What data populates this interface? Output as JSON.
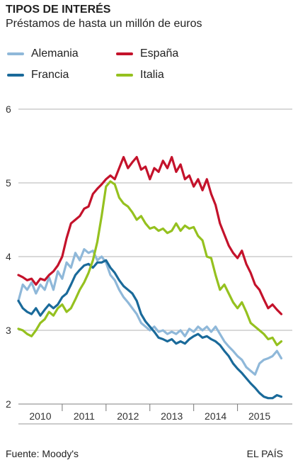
{
  "header": {
    "title": "TIPOS DE INTERÉS",
    "subtitle": "Préstamos de hasta un millón de euros"
  },
  "footer": {
    "source": "Fuente: Moody's",
    "brand": "EL PAÍS"
  },
  "chart_data": {
    "type": "line",
    "title": "TIPOS DE INTERÉS",
    "subtitle": "Préstamos de hasta un millón de euros",
    "xlabel": "",
    "ylabel": "",
    "ylim": [
      2,
      6
    ],
    "xlim": [
      2009.5,
      2015.75
    ],
    "yticks": [
      2,
      3,
      4,
      5,
      6
    ],
    "xtick_labels": [
      "2010",
      "2011",
      "2012",
      "2013",
      "2014",
      "2015"
    ],
    "x_label_positions": [
      2010,
      2011,
      2012,
      2013,
      2014,
      2015
    ],
    "x_separators": [
      2010.5,
      2011.5,
      2012.5,
      2013.5,
      2014.5
    ],
    "grid": "horizontal",
    "legend_placement": "top",
    "series": [
      {
        "name": "Alemania",
        "color": "#8fb8d9",
        "points": [
          [
            2009.5,
            3.4
          ],
          [
            2009.6,
            3.62
          ],
          [
            2009.7,
            3.55
          ],
          [
            2009.8,
            3.65
          ],
          [
            2009.9,
            3.5
          ],
          [
            2010.0,
            3.62
          ],
          [
            2010.1,
            3.55
          ],
          [
            2010.2,
            3.72
          ],
          [
            2010.3,
            3.55
          ],
          [
            2010.4,
            3.8
          ],
          [
            2010.5,
            3.7
          ],
          [
            2010.6,
            3.92
          ],
          [
            2010.7,
            3.85
          ],
          [
            2010.8,
            4.05
          ],
          [
            2010.9,
            3.95
          ],
          [
            2011.0,
            4.1
          ],
          [
            2011.1,
            4.05
          ],
          [
            2011.2,
            4.08
          ],
          [
            2011.3,
            3.95
          ],
          [
            2011.4,
            4.0
          ],
          [
            2011.5,
            3.92
          ],
          [
            2011.6,
            3.75
          ],
          [
            2011.7,
            3.68
          ],
          [
            2011.8,
            3.55
          ],
          [
            2011.9,
            3.45
          ],
          [
            2012.0,
            3.38
          ],
          [
            2012.1,
            3.3
          ],
          [
            2012.2,
            3.22
          ],
          [
            2012.3,
            3.1
          ],
          [
            2012.4,
            3.05
          ],
          [
            2012.5,
            3.0
          ],
          [
            2012.6,
            3.05
          ],
          [
            2012.7,
            2.98
          ],
          [
            2012.8,
            3.0
          ],
          [
            2012.9,
            2.95
          ],
          [
            2013.0,
            2.98
          ],
          [
            2013.1,
            2.95
          ],
          [
            2013.2,
            3.0
          ],
          [
            2013.3,
            2.92
          ],
          [
            2013.4,
            3.02
          ],
          [
            2013.5,
            2.98
          ],
          [
            2013.6,
            3.05
          ],
          [
            2013.7,
            3.0
          ],
          [
            2013.8,
            3.05
          ],
          [
            2013.9,
            2.98
          ],
          [
            2014.0,
            3.05
          ],
          [
            2014.1,
            2.95
          ],
          [
            2014.2,
            2.85
          ],
          [
            2014.3,
            2.78
          ],
          [
            2014.4,
            2.72
          ],
          [
            2014.5,
            2.65
          ],
          [
            2014.6,
            2.6
          ],
          [
            2014.7,
            2.5
          ],
          [
            2014.8,
            2.45
          ],
          [
            2014.9,
            2.4
          ],
          [
            2015.0,
            2.55
          ],
          [
            2015.1,
            2.6
          ],
          [
            2015.2,
            2.62
          ],
          [
            2015.3,
            2.65
          ],
          [
            2015.4,
            2.72
          ],
          [
            2015.5,
            2.62
          ]
        ]
      },
      {
        "name": "Francia",
        "color": "#1a6a9a",
        "points": [
          [
            2009.5,
            3.4
          ],
          [
            2009.6,
            3.3
          ],
          [
            2009.7,
            3.25
          ],
          [
            2009.8,
            3.22
          ],
          [
            2009.9,
            3.3
          ],
          [
            2010.0,
            3.2
          ],
          [
            2010.1,
            3.28
          ],
          [
            2010.2,
            3.35
          ],
          [
            2010.3,
            3.3
          ],
          [
            2010.4,
            3.35
          ],
          [
            2010.5,
            3.45
          ],
          [
            2010.6,
            3.5
          ],
          [
            2010.7,
            3.62
          ],
          [
            2010.8,
            3.75
          ],
          [
            2010.9,
            3.82
          ],
          [
            2011.0,
            3.88
          ],
          [
            2011.1,
            3.9
          ],
          [
            2011.2,
            3.85
          ],
          [
            2011.3,
            3.92
          ],
          [
            2011.4,
            3.92
          ],
          [
            2011.5,
            3.95
          ],
          [
            2011.6,
            3.85
          ],
          [
            2011.7,
            3.78
          ],
          [
            2011.8,
            3.68
          ],
          [
            2011.9,
            3.6
          ],
          [
            2012.0,
            3.55
          ],
          [
            2012.1,
            3.5
          ],
          [
            2012.2,
            3.4
          ],
          [
            2012.3,
            3.22
          ],
          [
            2012.4,
            3.12
          ],
          [
            2012.5,
            3.05
          ],
          [
            2012.6,
            2.98
          ],
          [
            2012.7,
            2.9
          ],
          [
            2012.8,
            2.88
          ],
          [
            2012.9,
            2.85
          ],
          [
            2013.0,
            2.88
          ],
          [
            2013.1,
            2.82
          ],
          [
            2013.2,
            2.85
          ],
          [
            2013.3,
            2.82
          ],
          [
            2013.4,
            2.88
          ],
          [
            2013.5,
            2.92
          ],
          [
            2013.6,
            2.95
          ],
          [
            2013.7,
            2.9
          ],
          [
            2013.8,
            2.92
          ],
          [
            2013.9,
            2.88
          ],
          [
            2014.0,
            2.85
          ],
          [
            2014.1,
            2.8
          ],
          [
            2014.2,
            2.72
          ],
          [
            2014.3,
            2.65
          ],
          [
            2014.4,
            2.55
          ],
          [
            2014.5,
            2.48
          ],
          [
            2014.6,
            2.42
          ],
          [
            2014.7,
            2.35
          ],
          [
            2014.8,
            2.28
          ],
          [
            2014.9,
            2.22
          ],
          [
            2015.0,
            2.15
          ],
          [
            2015.1,
            2.1
          ],
          [
            2015.2,
            2.08
          ],
          [
            2015.3,
            2.08
          ],
          [
            2015.4,
            2.12
          ],
          [
            2015.5,
            2.1
          ]
        ]
      },
      {
        "name": "España",
        "color": "#c4122b",
        "points": [
          [
            2009.5,
            3.75
          ],
          [
            2009.6,
            3.72
          ],
          [
            2009.7,
            3.68
          ],
          [
            2009.8,
            3.7
          ],
          [
            2009.9,
            3.62
          ],
          [
            2010.0,
            3.7
          ],
          [
            2010.1,
            3.68
          ],
          [
            2010.2,
            3.75
          ],
          [
            2010.3,
            3.8
          ],
          [
            2010.4,
            3.88
          ],
          [
            2010.5,
            4.0
          ],
          [
            2010.6,
            4.25
          ],
          [
            2010.7,
            4.45
          ],
          [
            2010.8,
            4.5
          ],
          [
            2010.9,
            4.55
          ],
          [
            2011.0,
            4.65
          ],
          [
            2011.1,
            4.68
          ],
          [
            2011.2,
            4.85
          ],
          [
            2011.3,
            4.92
          ],
          [
            2011.4,
            4.98
          ],
          [
            2011.5,
            5.05
          ],
          [
            2011.6,
            5.1
          ],
          [
            2011.7,
            5.05
          ],
          [
            2011.8,
            5.2
          ],
          [
            2011.9,
            5.35
          ],
          [
            2012.0,
            5.2
          ],
          [
            2012.1,
            5.28
          ],
          [
            2012.2,
            5.35
          ],
          [
            2012.3,
            5.18
          ],
          [
            2012.4,
            5.22
          ],
          [
            2012.5,
            5.05
          ],
          [
            2012.6,
            5.2
          ],
          [
            2012.7,
            5.15
          ],
          [
            2012.8,
            5.3
          ],
          [
            2012.9,
            5.2
          ],
          [
            2013.0,
            5.35
          ],
          [
            2013.1,
            5.15
          ],
          [
            2013.2,
            5.25
          ],
          [
            2013.3,
            5.05
          ],
          [
            2013.4,
            5.1
          ],
          [
            2013.5,
            4.95
          ],
          [
            2013.6,
            5.05
          ],
          [
            2013.7,
            4.9
          ],
          [
            2013.8,
            5.05
          ],
          [
            2013.9,
            4.85
          ],
          [
            2014.0,
            4.7
          ],
          [
            2014.1,
            4.45
          ],
          [
            2014.2,
            4.3
          ],
          [
            2014.3,
            4.15
          ],
          [
            2014.4,
            4.05
          ],
          [
            2014.5,
            3.98
          ],
          [
            2014.6,
            4.08
          ],
          [
            2014.7,
            3.9
          ],
          [
            2014.8,
            3.78
          ],
          [
            2014.9,
            3.62
          ],
          [
            2015.0,
            3.55
          ],
          [
            2015.1,
            3.42
          ],
          [
            2015.2,
            3.3
          ],
          [
            2015.3,
            3.35
          ],
          [
            2015.4,
            3.28
          ],
          [
            2015.5,
            3.22
          ]
        ]
      },
      {
        "name": "Italia",
        "color": "#95c11f",
        "points": [
          [
            2009.5,
            3.02
          ],
          [
            2009.6,
            3.0
          ],
          [
            2009.7,
            2.95
          ],
          [
            2009.8,
            2.92
          ],
          [
            2009.9,
            3.0
          ],
          [
            2010.0,
            3.1
          ],
          [
            2010.1,
            3.15
          ],
          [
            2010.2,
            3.25
          ],
          [
            2010.3,
            3.2
          ],
          [
            2010.4,
            3.3
          ],
          [
            2010.5,
            3.35
          ],
          [
            2010.6,
            3.25
          ],
          [
            2010.7,
            3.3
          ],
          [
            2010.8,
            3.42
          ],
          [
            2010.9,
            3.55
          ],
          [
            2011.0,
            3.65
          ],
          [
            2011.1,
            3.78
          ],
          [
            2011.2,
            3.95
          ],
          [
            2011.3,
            4.2
          ],
          [
            2011.4,
            4.55
          ],
          [
            2011.5,
            4.95
          ],
          [
            2011.6,
            5.02
          ],
          [
            2011.7,
            4.98
          ],
          [
            2011.8,
            4.8
          ],
          [
            2011.9,
            4.72
          ],
          [
            2012.0,
            4.68
          ],
          [
            2012.1,
            4.6
          ],
          [
            2012.2,
            4.5
          ],
          [
            2012.3,
            4.55
          ],
          [
            2012.4,
            4.45
          ],
          [
            2012.5,
            4.38
          ],
          [
            2012.6,
            4.4
          ],
          [
            2012.7,
            4.35
          ],
          [
            2012.8,
            4.38
          ],
          [
            2012.9,
            4.32
          ],
          [
            2013.0,
            4.35
          ],
          [
            2013.1,
            4.45
          ],
          [
            2013.2,
            4.35
          ],
          [
            2013.3,
            4.42
          ],
          [
            2013.4,
            4.38
          ],
          [
            2013.5,
            4.4
          ],
          [
            2013.6,
            4.28
          ],
          [
            2013.7,
            4.22
          ],
          [
            2013.8,
            4.0
          ],
          [
            2013.9,
            3.98
          ],
          [
            2014.0,
            3.75
          ],
          [
            2014.1,
            3.55
          ],
          [
            2014.2,
            3.62
          ],
          [
            2014.3,
            3.5
          ],
          [
            2014.4,
            3.38
          ],
          [
            2014.5,
            3.3
          ],
          [
            2014.6,
            3.38
          ],
          [
            2014.7,
            3.25
          ],
          [
            2014.8,
            3.1
          ],
          [
            2014.9,
            3.05
          ],
          [
            2015.0,
            3.0
          ],
          [
            2015.1,
            2.95
          ],
          [
            2015.2,
            2.88
          ],
          [
            2015.3,
            2.9
          ],
          [
            2015.4,
            2.8
          ],
          [
            2015.5,
            2.85
          ]
        ]
      }
    ]
  }
}
